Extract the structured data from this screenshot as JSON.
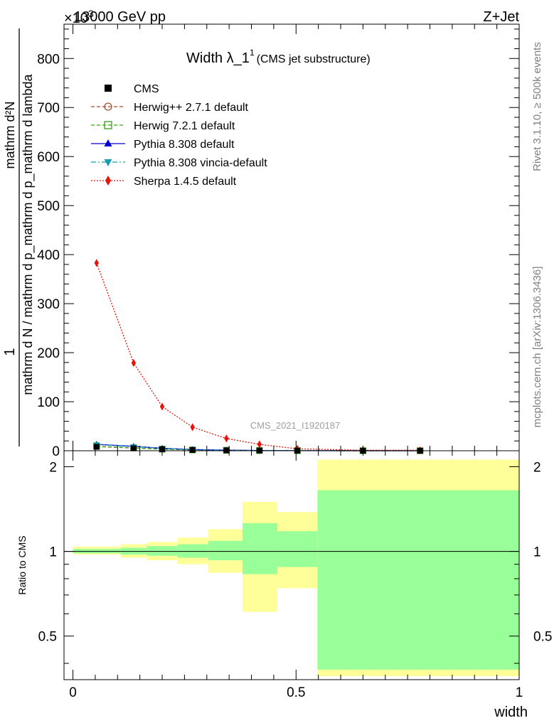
{
  "header": {
    "energy": "13000 GeV pp",
    "process": "Z+Jet",
    "exponent_label": "×10",
    "exponent_power": "3"
  },
  "sidebar": {
    "rivet": "Rivet 3.1.10, ≥ 500k events",
    "mcplots": "mcplots.cern.ch [arXiv:1306.3436]"
  },
  "watermark": "CMS_2021_I1920187",
  "chart_data": [
    {
      "type": "line",
      "title": "Width λ_1",
      "title_sup": "1",
      "subtitle": "(CMS jet substructure)",
      "ylabel_num": "1",
      "ylabel_den": "mathrm d N / mathrm d p_mathrm d p_mathrm d lambda",
      "ylabel_right": "mathrm d²N",
      "ylim": [
        0,
        870
      ],
      "xlim": [
        -0.02,
        1.0
      ],
      "yticks": [
        0,
        100,
        200,
        300,
        400,
        500,
        600,
        700,
        800
      ],
      "ytick_labels": [
        "0",
        "100",
        "200",
        "300",
        "400",
        "500",
        "600",
        "700",
        "800"
      ],
      "x": [
        0.053,
        0.136,
        0.2,
        0.268,
        0.344,
        0.418,
        0.503,
        0.65,
        0.778
      ],
      "series": [
        {
          "name": "CMS",
          "color": "#000000",
          "marker": "square",
          "line": "none",
          "values": [
            8,
            5,
            3,
            1.5,
            0.8,
            0.4,
            0.2,
            0.05,
            0.02
          ]
        },
        {
          "name": "Herwig++ 2.7.1 default",
          "color": "#a0522d",
          "marker": "circle-open",
          "line": "dashed",
          "values": [
            8.5,
            5.5,
            3.2,
            1.6,
            0.9,
            0.5,
            0.2,
            0.06,
            0.02
          ]
        },
        {
          "name": "Herwig 7.2.1 default",
          "color": "#3c9c1c",
          "marker": "square-open",
          "line": "dashed",
          "values": [
            9,
            5.8,
            3.3,
            1.7,
            0.9,
            0.5,
            0.2,
            0.06,
            0.02
          ]
        },
        {
          "name": "Pythia 8.308 default",
          "color": "#0000cd",
          "marker": "triangle-up",
          "line": "solid",
          "values": [
            13,
            9,
            5,
            2.5,
            1.2,
            0.5,
            0.2,
            0.06,
            0.02
          ]
        },
        {
          "name": "Pythia 8.308 vincia-default",
          "color": "#1a9cb0",
          "marker": "triangle-down",
          "line": "dashdot",
          "values": [
            12.5,
            8.5,
            4.8,
            2.4,
            1.1,
            0.5,
            0.2,
            0.06,
            0.02
          ]
        },
        {
          "name": "Sherpa 1.4.5 default",
          "color": "#e8140c",
          "marker": "diamond",
          "line": "dotted",
          "values": [
            383,
            179,
            90,
            48,
            25,
            13,
            4,
            1,
            1
          ]
        }
      ]
    },
    {
      "type": "area",
      "ylabel": "Ratio to CMS",
      "xlabel": "width",
      "ylim": [
        0.35,
        2.28
      ],
      "xlim": [
        -0.02,
        1.0
      ],
      "yticks": [
        0.5,
        1,
        2
      ],
      "ytick_labels": [
        "0.5",
        "1",
        "2"
      ],
      "xticks": [
        0,
        0.5,
        1
      ],
      "xtick_labels": [
        "0",
        "0.5",
        "1"
      ],
      "reference": 1,
      "bins": [
        {
          "lo": 0.0,
          "hi": 0.107,
          "stat_lo": 0.985,
          "stat_hi": 1.02,
          "tot_lo": 0.975,
          "tot_hi": 1.04
        },
        {
          "lo": 0.107,
          "hi": 0.166,
          "stat_lo": 0.975,
          "stat_hi": 1.03,
          "tot_lo": 0.95,
          "tot_hi": 1.06
        },
        {
          "lo": 0.166,
          "hi": 0.234,
          "stat_lo": 0.965,
          "stat_hi": 1.045,
          "tot_lo": 0.93,
          "tot_hi": 1.08
        },
        {
          "lo": 0.234,
          "hi": 0.303,
          "stat_lo": 0.95,
          "stat_hi": 1.06,
          "tot_lo": 0.9,
          "tot_hi": 1.12
        },
        {
          "lo": 0.303,
          "hi": 0.38,
          "stat_lo": 0.93,
          "stat_hi": 1.09,
          "tot_lo": 0.84,
          "tot_hi": 1.2
        },
        {
          "lo": 0.38,
          "hi": 0.458,
          "stat_lo": 0.83,
          "stat_hi": 1.26,
          "tot_lo": 0.61,
          "tot_hi": 1.5
        },
        {
          "lo": 0.458,
          "hi": 0.548,
          "stat_lo": 0.88,
          "stat_hi": 1.18,
          "tot_lo": 0.74,
          "tot_hi": 1.38
        },
        {
          "lo": 0.548,
          "hi": 1.0,
          "stat_lo": 0.38,
          "stat_hi": 1.65,
          "tot_lo": 0.36,
          "tot_hi": 2.12
        }
      ],
      "stat_color": "#99ff99",
      "tot_color": "#ffff99"
    }
  ]
}
